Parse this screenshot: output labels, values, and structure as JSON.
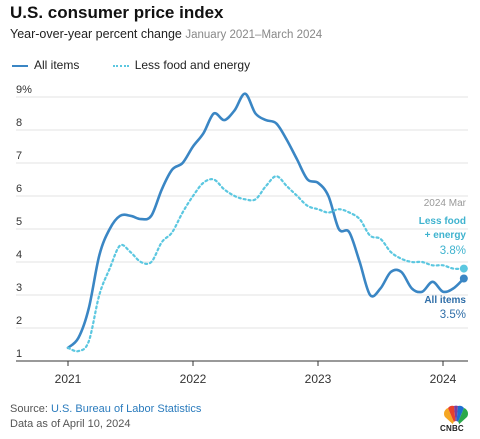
{
  "header": {
    "title": "U.S. consumer price index",
    "subtitle_main": "Year-over-year percent change",
    "subtitle_range": "January 2021–March 2024"
  },
  "legend": {
    "all_items": "All items",
    "core": "Less food and energy"
  },
  "annotations": {
    "date": "2024 Mar",
    "core_label_1": "Less food",
    "core_label_2": "+ energy",
    "core_value": "3.8%",
    "all_label": "All items",
    "all_value": "3.5%"
  },
  "footer": {
    "source_prefix": "Source: ",
    "source_link": "U.S. Bureau of Labor Statistics",
    "data_as_of": "Data as of April 10, 2024"
  },
  "logo": {
    "text": "CNBC",
    "icon": "cnbc-peacock-icon"
  },
  "colors": {
    "all_items": "#3a86c4",
    "core": "#5bc7e0"
  },
  "chart_data": {
    "type": "line",
    "title": "U.S. consumer price index",
    "ylim": [
      1,
      9
    ],
    "y_ticks": [
      "1",
      "2",
      "3",
      "4",
      "5",
      "6",
      "7",
      "8",
      "9%"
    ],
    "x_ticks": [
      "2021",
      "2022",
      "2023",
      "2024"
    ],
    "x": [
      "2021-01",
      "2021-02",
      "2021-03",
      "2021-04",
      "2021-05",
      "2021-06",
      "2021-07",
      "2021-08",
      "2021-09",
      "2021-10",
      "2021-11",
      "2021-12",
      "2022-01",
      "2022-02",
      "2022-03",
      "2022-04",
      "2022-05",
      "2022-06",
      "2022-07",
      "2022-08",
      "2022-09",
      "2022-10",
      "2022-11",
      "2022-12",
      "2023-01",
      "2023-02",
      "2023-03",
      "2023-04",
      "2023-05",
      "2023-06",
      "2023-07",
      "2023-08",
      "2023-09",
      "2023-10",
      "2023-11",
      "2023-12",
      "2024-01",
      "2024-02",
      "2024-03"
    ],
    "series": [
      {
        "name": "All items",
        "values": [
          1.4,
          1.7,
          2.6,
          4.2,
          5.0,
          5.4,
          5.4,
          5.3,
          5.4,
          6.2,
          6.8,
          7.0,
          7.5,
          7.9,
          8.5,
          8.3,
          8.6,
          9.1,
          8.5,
          8.3,
          8.2,
          7.7,
          7.1,
          6.5,
          6.4,
          6.0,
          5.0,
          4.9,
          4.0,
          3.0,
          3.2,
          3.7,
          3.7,
          3.2,
          3.1,
          3.4,
          3.1,
          3.2,
          3.5
        ]
      },
      {
        "name": "Less food and energy",
        "values": [
          1.4,
          1.3,
          1.6,
          3.0,
          3.8,
          4.5,
          4.3,
          4.0,
          4.0,
          4.6,
          4.9,
          5.5,
          6.0,
          6.4,
          6.5,
          6.2,
          6.0,
          5.9,
          5.9,
          6.3,
          6.6,
          6.3,
          6.0,
          5.7,
          5.6,
          5.5,
          5.6,
          5.5,
          5.3,
          4.8,
          4.7,
          4.3,
          4.1,
          4.0,
          4.0,
          3.9,
          3.9,
          3.8,
          3.8
        ]
      }
    ]
  }
}
